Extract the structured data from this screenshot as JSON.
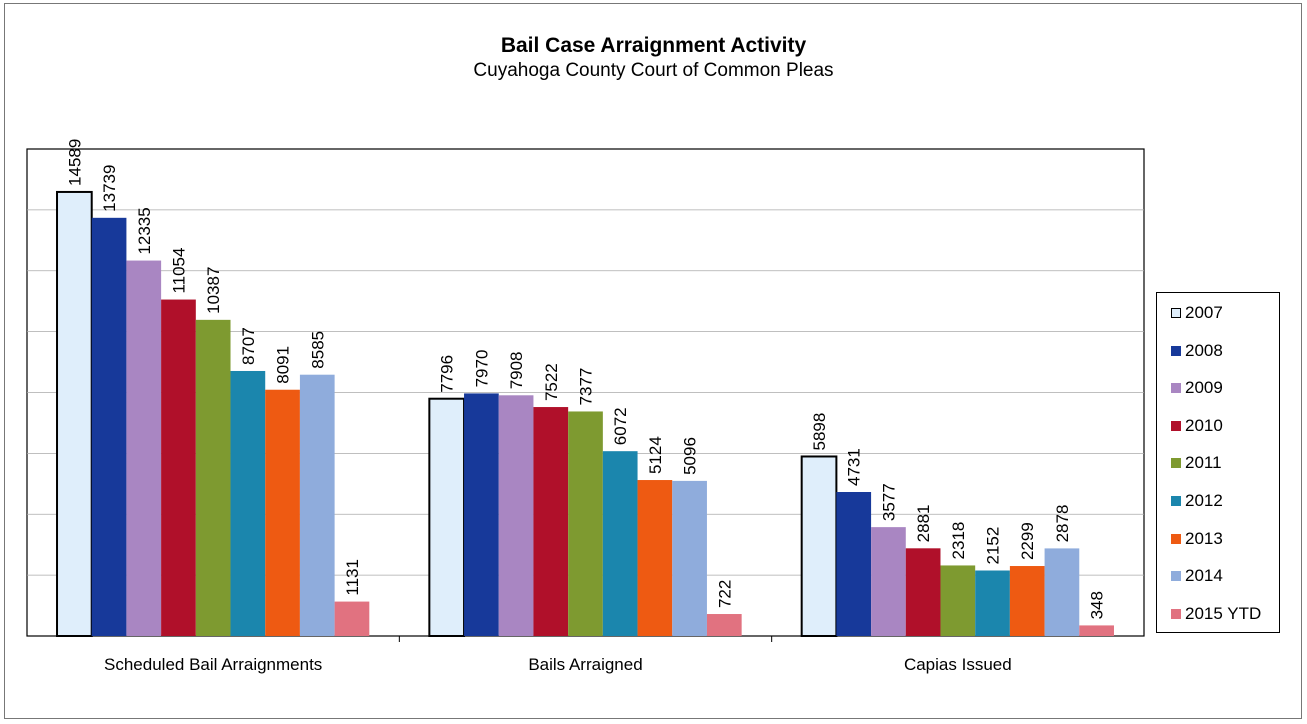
{
  "chart_data": {
    "type": "bar",
    "title": "Bail Case  Arraignment Activity",
    "subtitle": "Cuyahoga County Court of Common Pleas",
    "categories": [
      "Scheduled Bail Arraignments",
      "Bails Arraigned",
      "Capias Issued"
    ],
    "ylim": [
      0,
      16000
    ],
    "grid": true,
    "legend_position": "right",
    "series": [
      {
        "name": "2007",
        "color": "#dfeefb",
        "values": [
          14589,
          7796,
          5898
        ]
      },
      {
        "name": "2008",
        "color": "#17399a",
        "values": [
          13739,
          7970,
          4731
        ]
      },
      {
        "name": "2009",
        "color": "#a986c2",
        "values": [
          12335,
          7908,
          3577
        ]
      },
      {
        "name": "2010",
        "color": "#b0102a",
        "values": [
          11054,
          7522,
          2881
        ]
      },
      {
        "name": "2011",
        "color": "#7e9a30",
        "values": [
          10387,
          7377,
          2318
        ]
      },
      {
        "name": "2012",
        "color": "#1b86ad",
        "values": [
          8707,
          6072,
          2152
        ]
      },
      {
        "name": "2013",
        "color": "#ee5a12",
        "values": [
          8091,
          5124,
          2299
        ]
      },
      {
        "name": "2014",
        "color": "#8facdc",
        "values": [
          8585,
          5096,
          2878
        ]
      },
      {
        "name": "2015 YTD",
        "color": "#e17280",
        "values": [
          1131,
          722,
          348
        ]
      }
    ]
  }
}
